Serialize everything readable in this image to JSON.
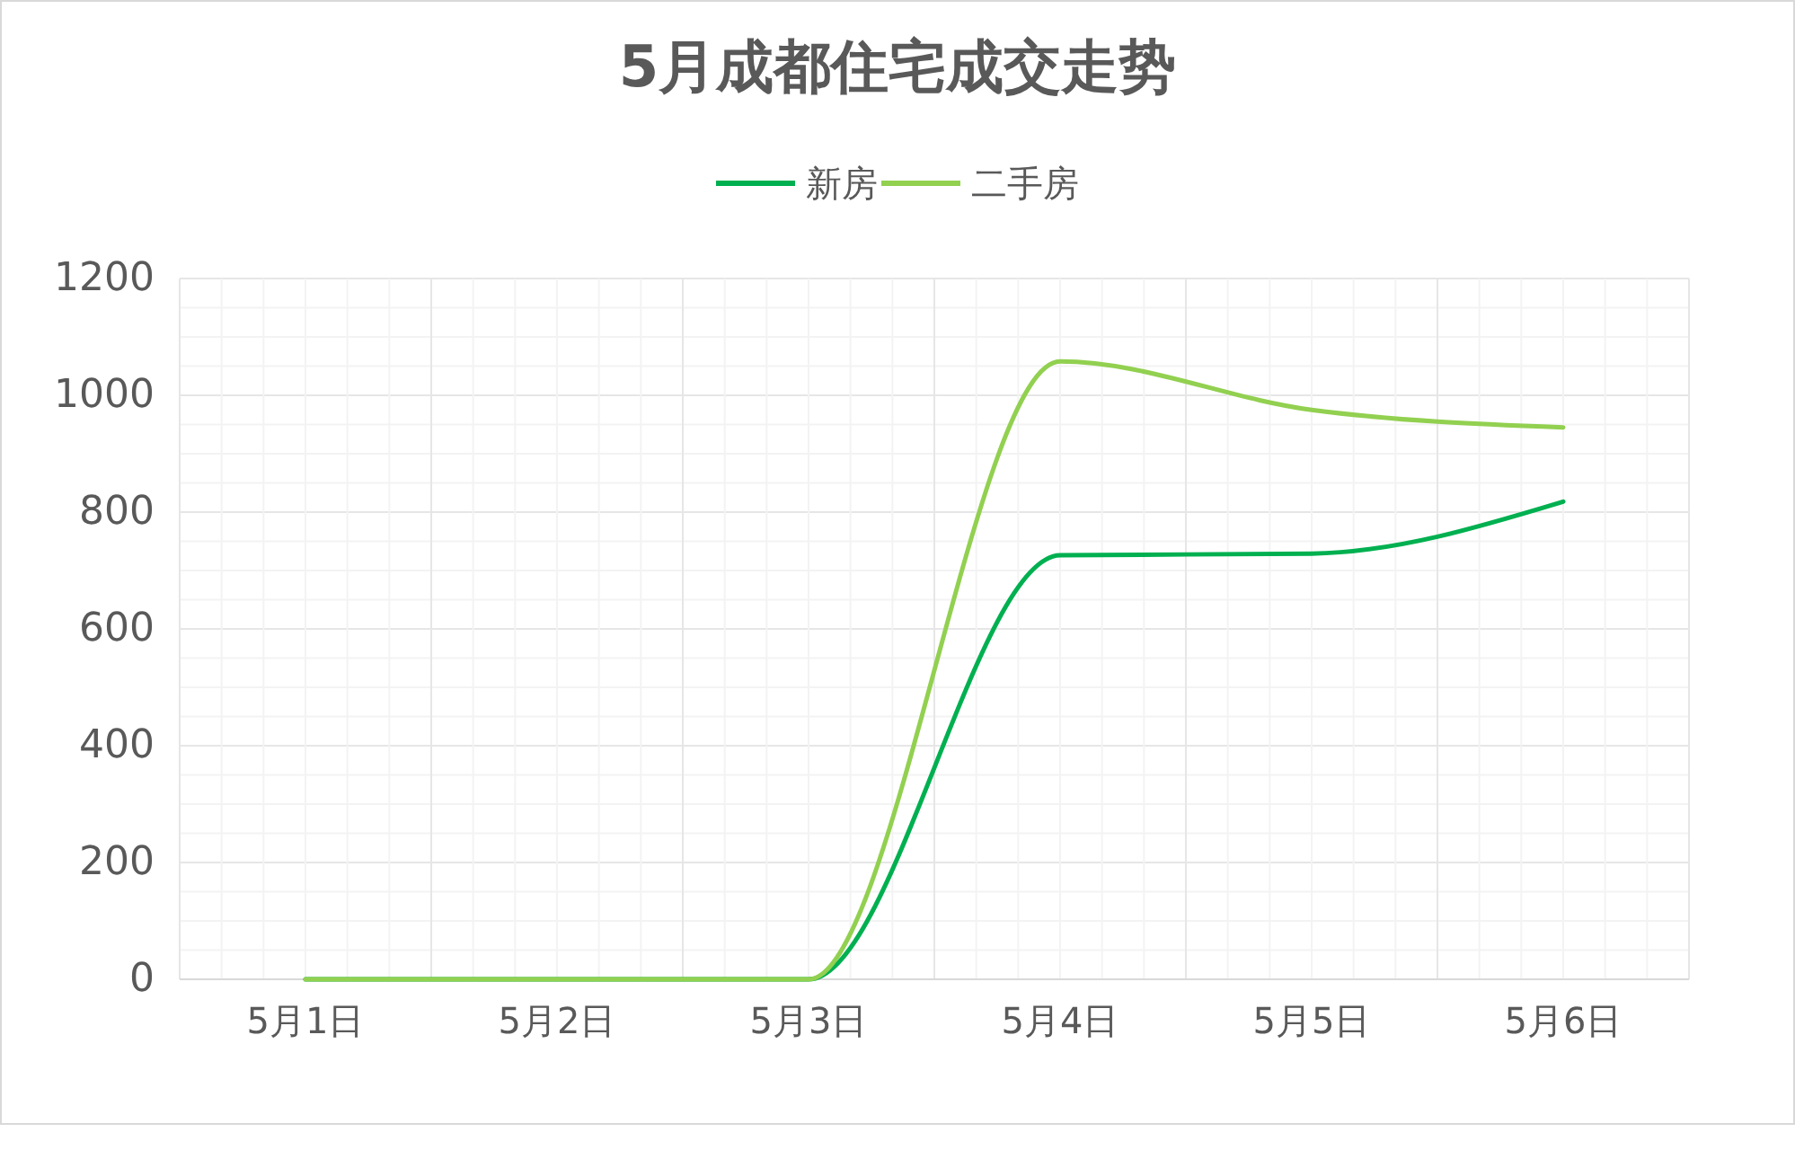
{
  "chart_data": {
    "type": "line",
    "title": "5月成都住宅成交走势",
    "categories": [
      "5月1日",
      "5月2日",
      "5月3日",
      "5月4日",
      "5月5日",
      "5月6日"
    ],
    "series": [
      {
        "name": "新房",
        "color": "#00b050",
        "values": [
          0,
          0,
          0,
          726,
          729,
          818
        ]
      },
      {
        "name": "二手房",
        "color": "#92d050",
        "values": [
          0,
          0,
          0,
          1058,
          975,
          945
        ]
      }
    ],
    "ylim": [
      0,
      1200
    ],
    "yticks": [
      0,
      200,
      400,
      600,
      800,
      1000,
      1200
    ],
    "grid": true,
    "legend": "top",
    "marker": "none",
    "line_style": "solid"
  }
}
